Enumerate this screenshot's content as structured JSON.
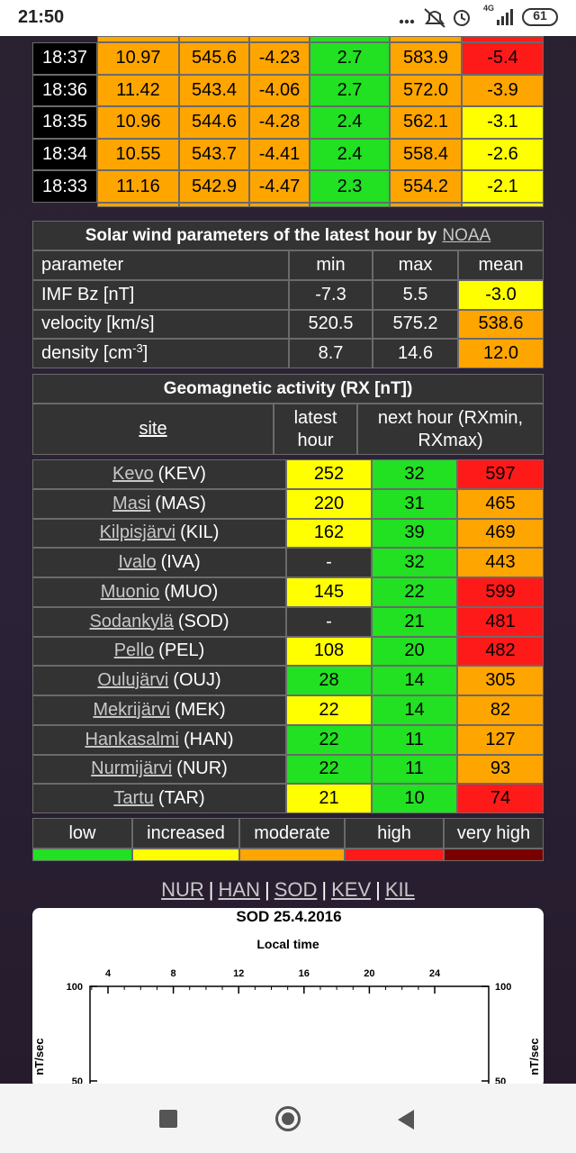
{
  "status_bar": {
    "time": "21:50",
    "network": "4G",
    "battery": "61"
  },
  "recent_table": {
    "rows": [
      {
        "time": "18:37",
        "cells": [
          {
            "text": "10.97",
            "color": "#ffa500"
          },
          {
            "text": "545.6",
            "color": "#ffa500"
          },
          {
            "text": "-4.23",
            "color": "#ffa500"
          },
          {
            "text": "2.7",
            "color": "#22e022"
          },
          {
            "text": "583.9",
            "color": "#ffa500"
          },
          {
            "text": "-5.4",
            "color": "#ff1a1a"
          }
        ]
      },
      {
        "time": "18:36",
        "cells": [
          {
            "text": "11.42",
            "color": "#ffa500"
          },
          {
            "text": "543.4",
            "color": "#ffa500"
          },
          {
            "text": "-4.06",
            "color": "#ffa500"
          },
          {
            "text": "2.7",
            "color": "#22e022"
          },
          {
            "text": "572.0",
            "color": "#ffa500"
          },
          {
            "text": "-3.9",
            "color": "#ffa500"
          }
        ]
      },
      {
        "time": "18:35",
        "cells": [
          {
            "text": "10.96",
            "color": "#ffa500"
          },
          {
            "text": "544.6",
            "color": "#ffa500"
          },
          {
            "text": "-4.28",
            "color": "#ffa500"
          },
          {
            "text": "2.4",
            "color": "#22e022"
          },
          {
            "text": "562.1",
            "color": "#ffa500"
          },
          {
            "text": "-3.1",
            "color": "#ffff00"
          }
        ]
      },
      {
        "time": "18:34",
        "cells": [
          {
            "text": "10.55",
            "color": "#ffa500"
          },
          {
            "text": "543.7",
            "color": "#ffa500"
          },
          {
            "text": "-4.41",
            "color": "#ffa500"
          },
          {
            "text": "2.4",
            "color": "#22e022"
          },
          {
            "text": "558.4",
            "color": "#ffa500"
          },
          {
            "text": "-2.6",
            "color": "#ffff00"
          }
        ]
      },
      {
        "time": "18:33",
        "cells": [
          {
            "text": "11.16",
            "color": "#ffa500"
          },
          {
            "text": "542.9",
            "color": "#ffa500"
          },
          {
            "text": "-4.47",
            "color": "#ffa500"
          },
          {
            "text": "2.3",
            "color": "#22e022"
          },
          {
            "text": "554.2",
            "color": "#ffa500"
          },
          {
            "text": "-2.1",
            "color": "#ffff00"
          }
        ]
      }
    ]
  },
  "solar_wind": {
    "title": "Solar wind parameters of the latest hour by",
    "source_link": "NOAA",
    "header": [
      "parameter",
      "min",
      "max",
      "mean"
    ],
    "rows": [
      {
        "parameter": {
          "text": "IMF Bz [nT]"
        },
        "min": "-7.3",
        "max": "5.5",
        "mean": "-3.0",
        "mean_color": "#ffff00"
      },
      {
        "parameter": {
          "text": "velocity [km/s]"
        },
        "min": "520.5",
        "max": "575.2",
        "mean": "538.6",
        "mean_color": "#ffa500"
      },
      {
        "parameter": {
          "text": "density [cm",
          "sup": "-3",
          "after": "]"
        },
        "min": "8.7",
        "max": "14.6",
        "mean": "12.0",
        "mean_color": "#ffa500"
      }
    ]
  },
  "geomagnetic": {
    "title": "Geomagnetic activity (RX [nT])",
    "header": [
      "site",
      "latest hour",
      "next hour (RXmin, RXmax)"
    ],
    "rows": [
      {
        "name": "Kevo",
        "code": "(KEV)",
        "latest": {
          "text": "252",
          "color": "#ffff00"
        },
        "next_min": {
          "text": "32",
          "color": "#22e022"
        },
        "next_max": {
          "text": "597",
          "color": "#ff1a1a"
        }
      },
      {
        "name": "Masi",
        "code": "(MAS)",
        "latest": {
          "text": "220",
          "color": "#ffff00"
        },
        "next_min": {
          "text": "31",
          "color": "#22e022"
        },
        "next_max": {
          "text": "465",
          "color": "#ffa500"
        }
      },
      {
        "name": "Kilpisjärvi",
        "code": "(KIL)",
        "latest": {
          "text": "162",
          "color": "#ffff00"
        },
        "next_min": {
          "text": "39",
          "color": "#22e022"
        },
        "next_max": {
          "text": "469",
          "color": "#ffa500"
        }
      },
      {
        "name": "Ivalo",
        "code": "(IVA)",
        "latest": {
          "text": "-",
          "color": "#333333"
        },
        "next_min": {
          "text": "32",
          "color": "#22e022"
        },
        "next_max": {
          "text": "443",
          "color": "#ffa500"
        }
      },
      {
        "name": "Muonio",
        "code": "(MUO)",
        "latest": {
          "text": "145",
          "color": "#ffff00"
        },
        "next_min": {
          "text": "22",
          "color": "#22e022"
        },
        "next_max": {
          "text": "599",
          "color": "#ff1a1a"
        }
      },
      {
        "name": "Sodankylä",
        "code": "(SOD)",
        "latest": {
          "text": "-",
          "color": "#333333"
        },
        "next_min": {
          "text": "21",
          "color": "#22e022"
        },
        "next_max": {
          "text": "481",
          "color": "#ff1a1a"
        }
      },
      {
        "name": "Pello",
        "code": "(PEL)",
        "latest": {
          "text": "108",
          "color": "#ffff00"
        },
        "next_min": {
          "text": "20",
          "color": "#22e022"
        },
        "next_max": {
          "text": "482",
          "color": "#ff1a1a"
        }
      },
      {
        "name": "Oulujärvi",
        "code": "(OUJ)",
        "latest": {
          "text": "28",
          "color": "#22e022"
        },
        "next_min": {
          "text": "14",
          "color": "#22e022"
        },
        "next_max": {
          "text": "305",
          "color": "#ffa500"
        }
      },
      {
        "name": "Mekrijärvi",
        "code": "(MEK)",
        "latest": {
          "text": "22",
          "color": "#ffff00"
        },
        "next_min": {
          "text": "14",
          "color": "#22e022"
        },
        "next_max": {
          "text": "82",
          "color": "#ffa500"
        }
      },
      {
        "name": "Hankasalmi",
        "code": "(HAN)",
        "latest": {
          "text": "22",
          "color": "#22e022"
        },
        "next_min": {
          "text": "11",
          "color": "#22e022"
        },
        "next_max": {
          "text": "127",
          "color": "#ffa500"
        }
      },
      {
        "name": "Nurmijärvi",
        "code": "(NUR)",
        "latest": {
          "text": "22",
          "color": "#22e022"
        },
        "next_min": {
          "text": "11",
          "color": "#22e022"
        },
        "next_max": {
          "text": "93",
          "color": "#ffa500"
        }
      },
      {
        "name": "Tartu",
        "code": "(TAR)",
        "latest": {
          "text": "21",
          "color": "#ffff00"
        },
        "next_min": {
          "text": "10",
          "color": "#22e022"
        },
        "next_max": {
          "text": "74",
          "color": "#ff1a1a"
        }
      }
    ]
  },
  "legend": [
    {
      "label": "low",
      "color": "#22e022"
    },
    {
      "label": "increased",
      "color": "#ffff00"
    },
    {
      "label": "moderate",
      "color": "#ffa500"
    },
    {
      "label": "high",
      "color": "#ff1a1a"
    },
    {
      "label": "very high",
      "color": "#7a0000"
    }
  ],
  "station_links": {
    "links": [
      "NUR",
      "HAN",
      "SOD",
      "KEV",
      "KIL"
    ],
    "separator": "|"
  },
  "chart_image": {
    "title": "SOD 25.4.2016",
    "x_label": "Local time",
    "x_ticks": [
      "4",
      "8",
      "12",
      "16",
      "20",
      "24"
    ],
    "y_ticks": [
      "100",
      "50"
    ],
    "y_label": "nT/sec"
  }
}
